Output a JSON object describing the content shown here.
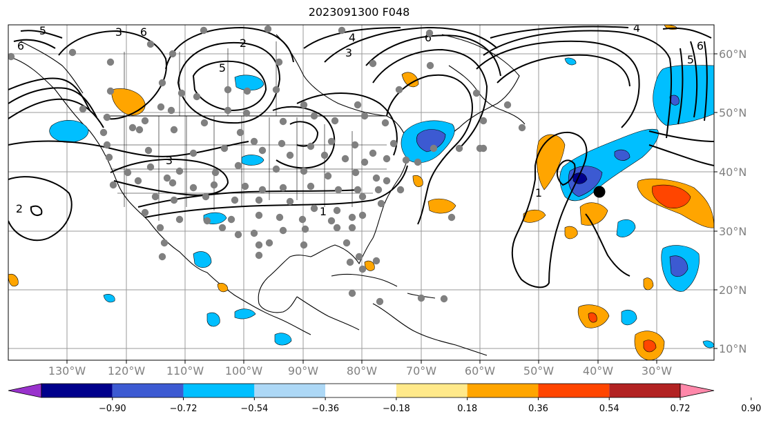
{
  "title": "2023091300 F048",
  "map": {
    "lon_ticks": [
      "130°W",
      "120°W",
      "110°W",
      "100°W",
      "90°W",
      "80°W",
      "70°W",
      "60°W",
      "50°W",
      "40°W",
      "30°W"
    ],
    "lat_ticks": [
      "10°N",
      "20°N",
      "30°N",
      "40°N",
      "50°N",
      "60°N"
    ],
    "contour_labels": [
      "6",
      "5",
      "3",
      "2",
      "6",
      "5",
      "4",
      "3",
      "6",
      "4",
      "5",
      "6",
      "2",
      "3",
      "1",
      "1"
    ],
    "colors": {
      "ocean": "#ffffff",
      "grid": "#9a9a9a",
      "station_dot": "#808080",
      "storm_marker": "#000000"
    }
  },
  "colorbar": {
    "colors": [
      "#9932cc",
      "#00008b",
      "#3c5ad2",
      "#00bfff",
      "#add8f6",
      "#ffffff",
      "#ffe98a",
      "#ffa500",
      "#ff4500",
      "#b22222",
      "#ff88aa"
    ],
    "labels": [
      "−0.90",
      "−0.72",
      "−0.54",
      "−0.36",
      "−0.18",
      "0.18",
      "0.36",
      "0.54",
      "0.72",
      "0.90"
    ]
  }
}
